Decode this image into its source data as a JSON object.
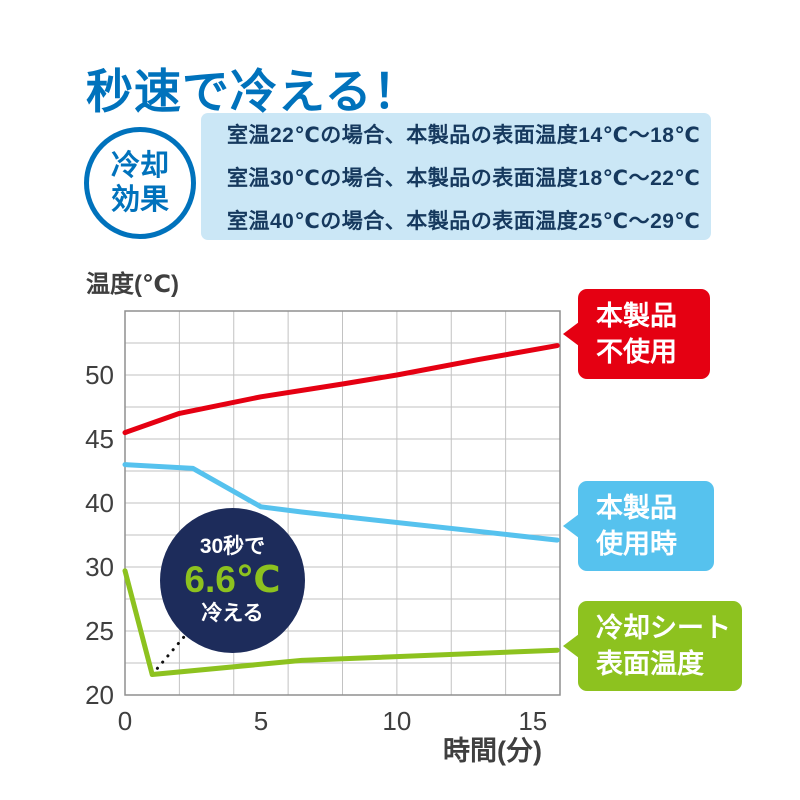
{
  "header": {
    "title": "秒速で冷える！"
  },
  "badge": {
    "line1": "冷却",
    "line2": "効果"
  },
  "info": {
    "lines": [
      "室温22℃の場合、本製品の表面温度14℃～18℃",
      "室温30℃の場合、本製品の表面温度18℃～22℃",
      "室温40℃の場合、本製品の表面温度25℃～29℃"
    ]
  },
  "legend": {
    "no_use": {
      "line1": "本製品",
      "line2": "不使用",
      "color": "#e50012"
    },
    "in_use": {
      "line1": "本製品",
      "line2": "使用時",
      "color": "#56c2ee"
    },
    "sheet": {
      "line1": "冷却シート",
      "line2": "表面温度",
      "color": "#8dc21f"
    }
  },
  "chart_data": {
    "type": "line",
    "title": "",
    "xlabel": "時間(分)",
    "ylabel": "温度(℃)",
    "x_ticks": [
      0,
      5,
      10,
      15
    ],
    "y_ticks": [
      20,
      25,
      30,
      40,
      45,
      50
    ],
    "y_axis_segments": [
      20,
      25,
      30,
      40,
      45,
      50,
      55
    ],
    "y_axis_note": "axis break between 30 and 40 (no 35 label)",
    "xlim": [
      0,
      16
    ],
    "grid": true,
    "series": [
      {
        "name": "本製品不使用",
        "color": "#e50012",
        "points": [
          [
            0,
            45.5
          ],
          [
            2,
            47
          ],
          [
            5,
            48.3
          ],
          [
            8,
            49.3
          ],
          [
            10,
            50
          ],
          [
            13,
            51.2
          ],
          [
            15.9,
            52.3
          ]
        ]
      },
      {
        "name": "本製品使用時",
        "color": "#56c2ee",
        "points": [
          [
            0,
            43
          ],
          [
            2.5,
            42.7
          ],
          [
            5,
            39.4
          ],
          [
            6.5,
            38.6
          ],
          [
            15.9,
            34.2
          ]
        ]
      },
      {
        "name": "冷却シート表面温度",
        "color": "#8dc21f",
        "points": [
          [
            0,
            29.7
          ],
          [
            1,
            21.6
          ],
          [
            6.5,
            22.7
          ],
          [
            15.9,
            23.5
          ]
        ]
      }
    ],
    "annotation": {
      "line1": "30秒で",
      "value": "6.6℃",
      "line2": "冷える",
      "target_point": [
        1,
        21.6
      ]
    }
  }
}
